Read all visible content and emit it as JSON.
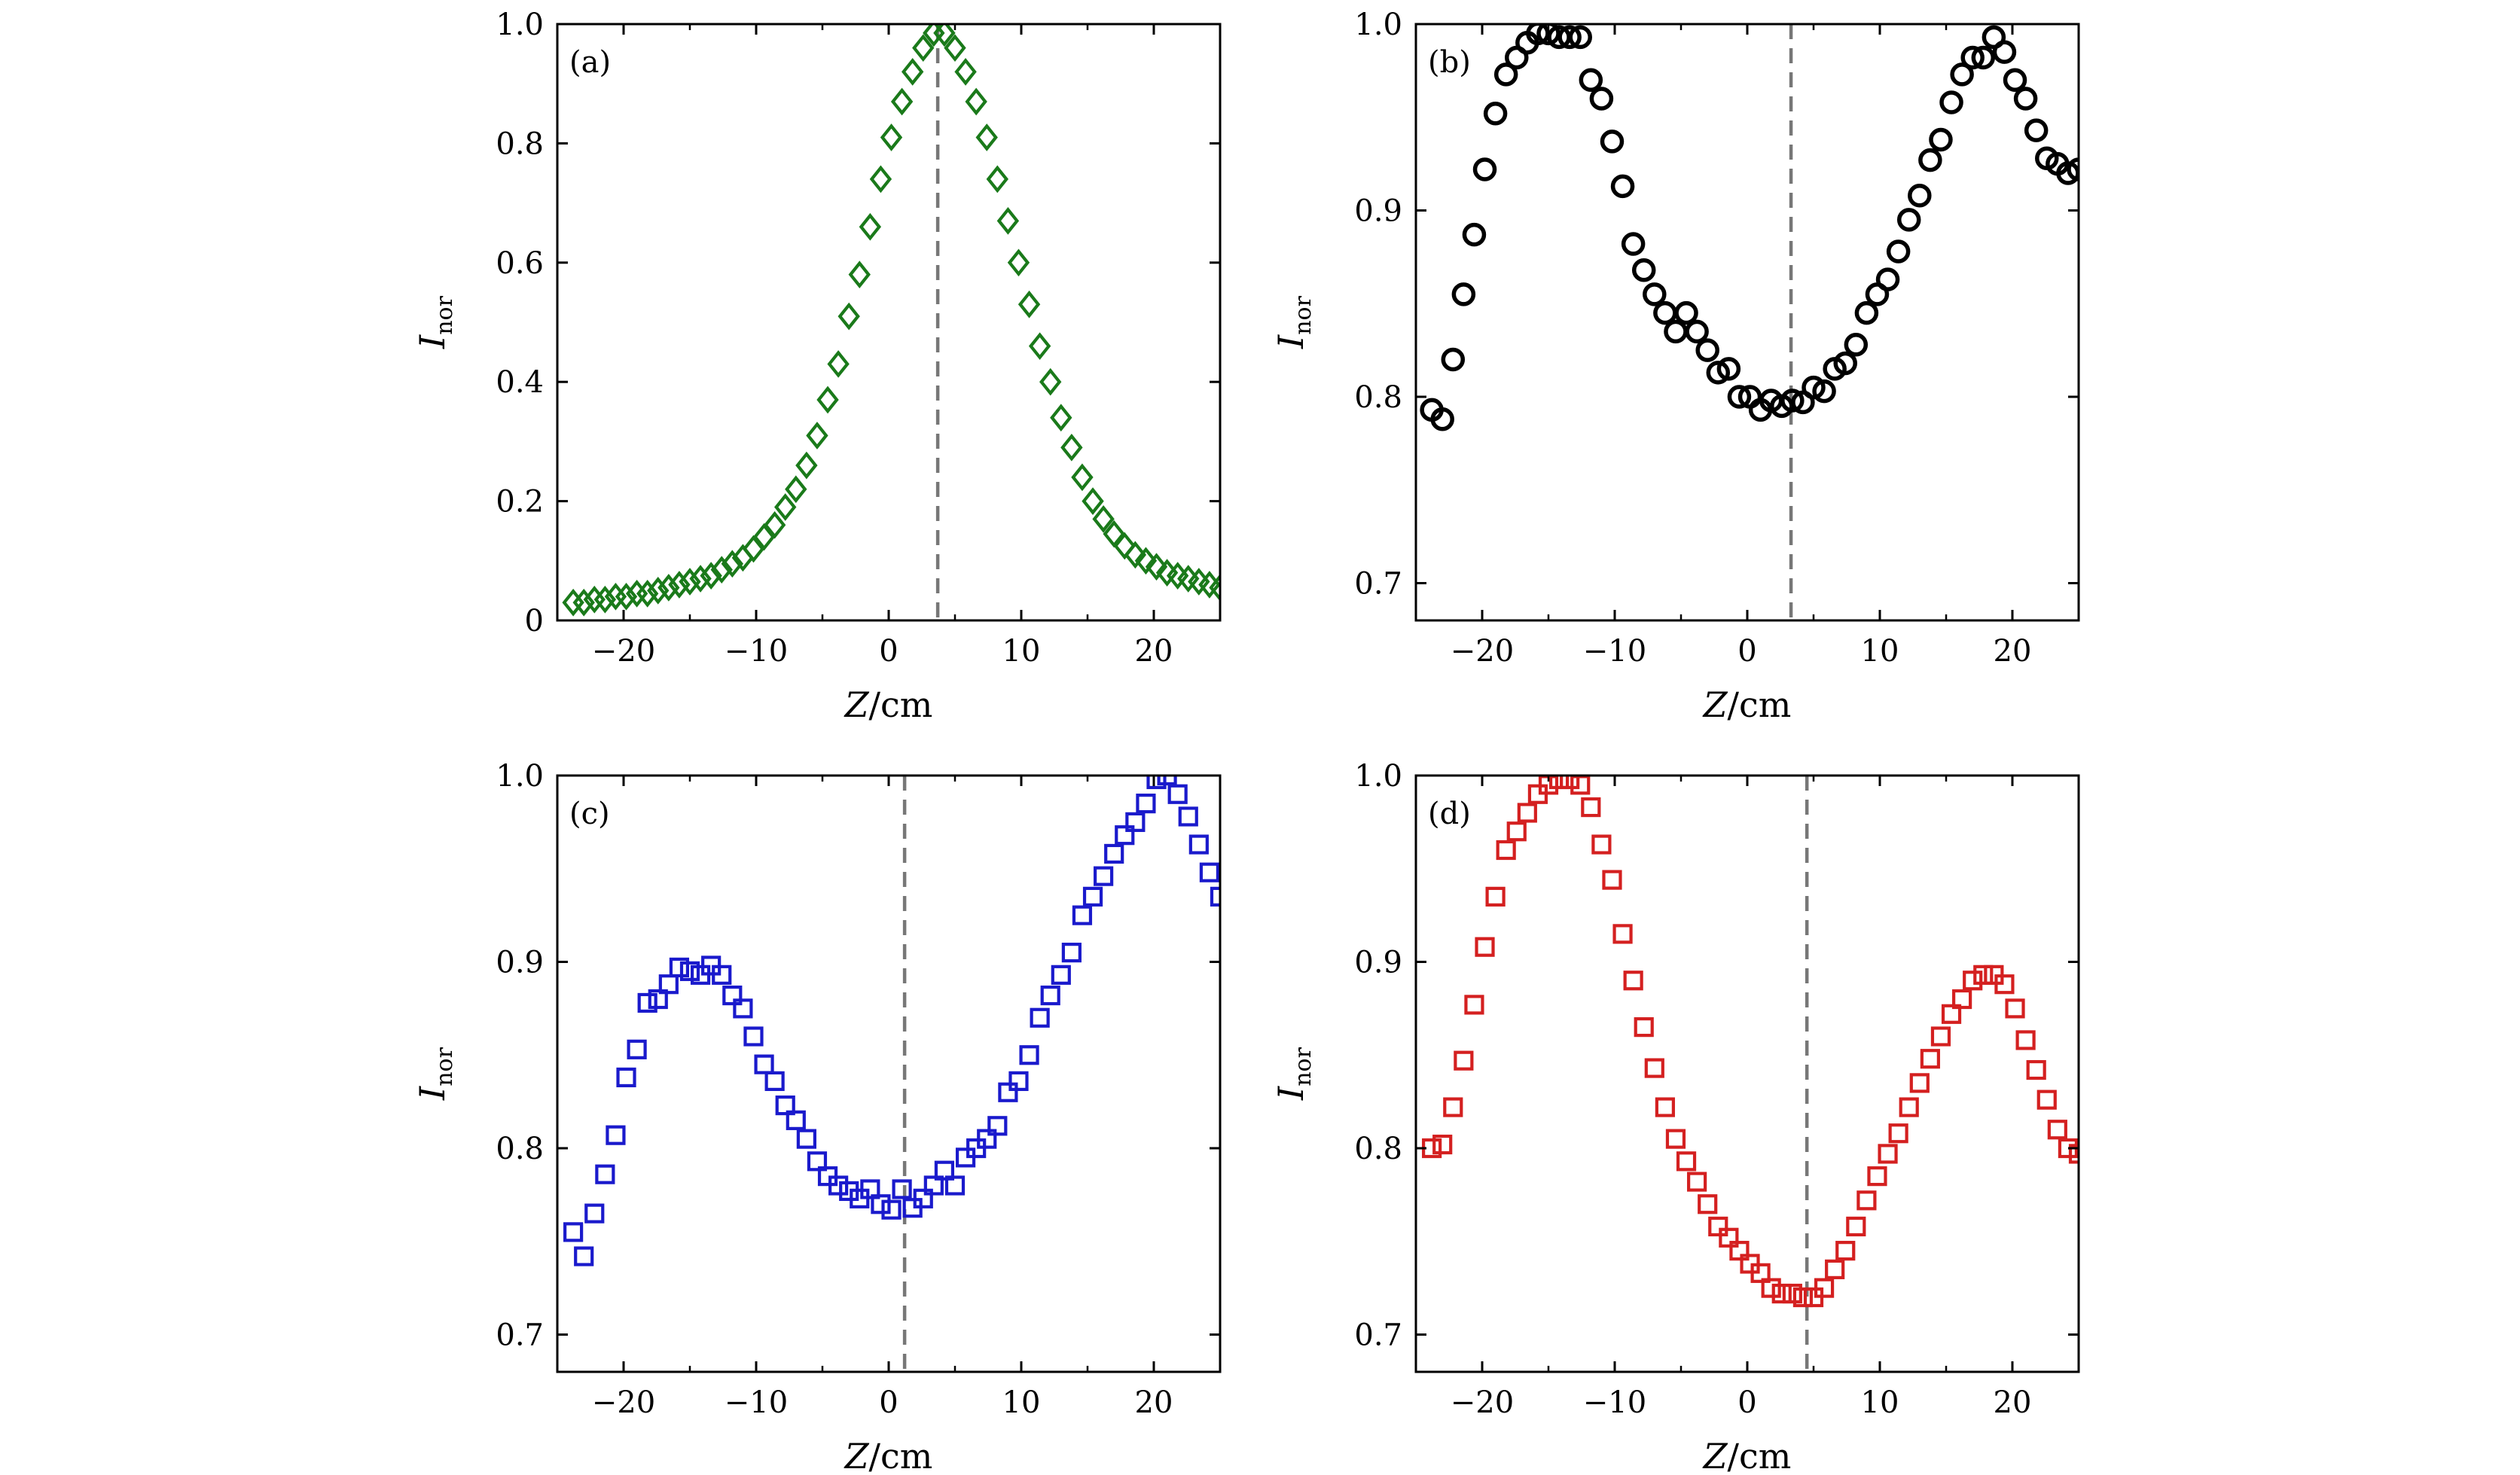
{
  "chart_data": [
    {
      "panel_label": "(a)",
      "type": "scatter",
      "marker": "diamond",
      "color": "#1a7a1a",
      "xlabel_main": "Z",
      "xlabel_unit": "/cm",
      "ylabel_main": "I",
      "ylabel_sub": "nor",
      "xlim": [
        -25,
        25
      ],
      "ylim": [
        0,
        1.0
      ],
      "xticks": [
        -20,
        -10,
        0,
        10,
        20
      ],
      "xtick_labels": [
        "−20",
        "−10",
        "0",
        "10",
        "20"
      ],
      "yticks": [
        0,
        0.2,
        0.4,
        0.6,
        0.8,
        1.0
      ],
      "ytick_labels": [
        "0",
        "0.2",
        "0.4",
        "0.6",
        "0.8",
        "1.0"
      ],
      "vline_x": 3.7,
      "x": [
        -23.8,
        -23.0,
        -22.2,
        -21.4,
        -20.6,
        -19.8,
        -19.0,
        -18.2,
        -17.4,
        -16.6,
        -15.8,
        -15.0,
        -14.2,
        -13.4,
        -12.6,
        -11.8,
        -11.0,
        -10.2,
        -9.4,
        -8.6,
        -7.8,
        -7.0,
        -6.2,
        -5.4,
        -4.6,
        -3.8,
        -3.0,
        -2.2,
        -1.4,
        -0.6,
        0.2,
        1.0,
        1.8,
        2.6,
        3.4,
        4.2,
        5.0,
        5.8,
        6.6,
        7.4,
        8.2,
        9.0,
        9.8,
        10.6,
        11.4,
        12.2,
        13.0,
        13.8,
        14.6,
        15.4,
        16.2,
        17.0,
        17.8,
        18.6,
        19.4,
        20.2,
        21.0,
        21.8,
        22.6,
        23.4,
        24.2,
        25.0
      ],
      "y": [
        0.03,
        0.03,
        0.035,
        0.035,
        0.04,
        0.04,
        0.045,
        0.045,
        0.05,
        0.055,
        0.06,
        0.065,
        0.07,
        0.075,
        0.085,
        0.095,
        0.105,
        0.12,
        0.14,
        0.16,
        0.19,
        0.22,
        0.26,
        0.31,
        0.37,
        0.43,
        0.51,
        0.58,
        0.66,
        0.74,
        0.81,
        0.87,
        0.92,
        0.96,
        0.985,
        0.985,
        0.96,
        0.92,
        0.87,
        0.81,
        0.74,
        0.67,
        0.6,
        0.53,
        0.46,
        0.4,
        0.34,
        0.29,
        0.24,
        0.2,
        0.17,
        0.145,
        0.125,
        0.11,
        0.1,
        0.09,
        0.08,
        0.075,
        0.07,
        0.065,
        0.06,
        0.055
      ]
    },
    {
      "panel_label": "(b)",
      "type": "scatter",
      "marker": "circle",
      "color": "#000000",
      "xlabel_main": "Z",
      "xlabel_unit": "/cm",
      "ylabel_main": "I",
      "ylabel_sub": "nor",
      "xlim": [
        -25,
        25
      ],
      "ylim": [
        0.68,
        1.0
      ],
      "xticks": [
        -20,
        -10,
        0,
        10,
        20
      ],
      "xtick_labels": [
        "−20",
        "−10",
        "0",
        "10",
        "20"
      ],
      "yticks": [
        0.7,
        0.8,
        0.9,
        1.0
      ],
      "ytick_labels": [
        "0.7",
        "0.8",
        "0.9",
        "1.0"
      ],
      "vline_x": 3.3,
      "x": [
        -23.8,
        -23.0,
        -22.2,
        -21.4,
        -20.6,
        -19.8,
        -19.0,
        -18.2,
        -17.4,
        -16.6,
        -15.8,
        -15.0,
        -14.2,
        -13.4,
        -12.6,
        -11.8,
        -11.0,
        -10.2,
        -9.4,
        -8.6,
        -7.8,
        -7.0,
        -6.2,
        -5.4,
        -4.6,
        -3.8,
        -3.0,
        -2.2,
        -1.4,
        -0.6,
        0.2,
        1.0,
        1.8,
        2.6,
        3.4,
        4.2,
        5.0,
        5.8,
        6.6,
        7.4,
        8.2,
        9.0,
        9.8,
        10.6,
        11.4,
        12.2,
        13.0,
        13.8,
        14.6,
        15.4,
        16.2,
        17.0,
        17.8,
        18.6,
        19.4,
        20.2,
        21.0,
        21.8,
        22.6,
        23.4,
        24.2,
        25.0
      ],
      "y": [
        0.793,
        0.788,
        0.82,
        0.855,
        0.887,
        0.922,
        0.952,
        0.973,
        0.982,
        0.99,
        0.995,
        0.995,
        0.993,
        0.993,
        0.993,
        0.97,
        0.96,
        0.937,
        0.913,
        0.882,
        0.868,
        0.855,
        0.845,
        0.835,
        0.845,
        0.835,
        0.825,
        0.813,
        0.815,
        0.8,
        0.8,
        0.793,
        0.798,
        0.795,
        0.798,
        0.797,
        0.805,
        0.803,
        0.815,
        0.818,
        0.828,
        0.845,
        0.855,
        0.863,
        0.878,
        0.895,
        0.908,
        0.927,
        0.938,
        0.958,
        0.973,
        0.982,
        0.982,
        0.993,
        0.985,
        0.97,
        0.96,
        0.943,
        0.928,
        0.925,
        0.92,
        0.922
      ]
    },
    {
      "panel_label": "(c)",
      "type": "scatter",
      "marker": "square",
      "color": "#1a1acc",
      "xlabel_main": "Z",
      "xlabel_unit": "/cm",
      "ylabel_main": "I",
      "ylabel_sub": "nor",
      "xlim": [
        -25,
        25
      ],
      "ylim": [
        0.68,
        1.0
      ],
      "xticks": [
        -20,
        -10,
        0,
        10,
        20
      ],
      "xtick_labels": [
        "−20",
        "−10",
        "0",
        "10",
        "20"
      ],
      "yticks": [
        0.7,
        0.8,
        0.9,
        1.0
      ],
      "ytick_labels": [
        "0.7",
        "0.8",
        "0.9",
        "1.0"
      ],
      "vline_x": 1.2,
      "x": [
        -23.8,
        -23.0,
        -22.2,
        -21.4,
        -20.6,
        -19.8,
        -19.0,
        -18.2,
        -17.4,
        -16.6,
        -15.8,
        -15.0,
        -14.2,
        -13.4,
        -12.6,
        -11.8,
        -11.0,
        -10.2,
        -9.4,
        -8.6,
        -7.8,
        -7.0,
        -6.2,
        -5.4,
        -4.6,
        -3.8,
        -3.0,
        -2.2,
        -1.4,
        -0.6,
        0.2,
        1.0,
        1.8,
        2.6,
        3.4,
        4.2,
        5.0,
        5.8,
        6.6,
        7.4,
        8.2,
        9.0,
        9.8,
        10.6,
        11.4,
        12.2,
        13.0,
        13.8,
        14.6,
        15.4,
        16.2,
        17.0,
        17.8,
        18.6,
        19.4,
        20.2,
        21.0,
        21.8,
        22.6,
        23.4,
        24.2,
        25.0
      ],
      "y": [
        0.755,
        0.742,
        0.765,
        0.786,
        0.807,
        0.838,
        0.853,
        0.878,
        0.88,
        0.888,
        0.897,
        0.895,
        0.893,
        0.898,
        0.893,
        0.882,
        0.875,
        0.86,
        0.845,
        0.836,
        0.823,
        0.815,
        0.805,
        0.793,
        0.785,
        0.78,
        0.777,
        0.773,
        0.778,
        0.77,
        0.767,
        0.778,
        0.768,
        0.773,
        0.78,
        0.788,
        0.78,
        0.795,
        0.8,
        0.805,
        0.812,
        0.83,
        0.836,
        0.85,
        0.87,
        0.882,
        0.893,
        0.905,
        0.925,
        0.935,
        0.946,
        0.958,
        0.968,
        0.975,
        0.985,
        0.998,
        1.0,
        0.99,
        0.978,
        0.963,
        0.948,
        0.935
      ]
    },
    {
      "panel_label": "(d)",
      "type": "scatter",
      "marker": "square",
      "color": "#d42020",
      "xlabel_main": "Z",
      "xlabel_unit": "/cm",
      "ylabel_main": "I",
      "ylabel_sub": "nor",
      "xlim": [
        -25,
        25
      ],
      "ylim": [
        0.68,
        1.0
      ],
      "xticks": [
        -20,
        -10,
        0,
        10,
        20
      ],
      "xtick_labels": [
        "−20",
        "−10",
        "0",
        "10",
        "20"
      ],
      "yticks": [
        0.7,
        0.8,
        0.9,
        1.0
      ],
      "ytick_labels": [
        "0.7",
        "0.8",
        "0.9",
        "1.0"
      ],
      "vline_x": 4.5,
      "x": [
        -23.8,
        -23.0,
        -22.2,
        -21.4,
        -20.6,
        -19.8,
        -19.0,
        -18.2,
        -17.4,
        -16.6,
        -15.8,
        -15.0,
        -14.2,
        -13.4,
        -12.6,
        -11.8,
        -11.0,
        -10.2,
        -9.4,
        -8.6,
        -7.8,
        -7.0,
        -6.2,
        -5.4,
        -4.6,
        -3.8,
        -3.0,
        -2.2,
        -1.4,
        -0.6,
        0.2,
        1.0,
        1.8,
        2.6,
        3.4,
        4.2,
        5.0,
        5.8,
        6.6,
        7.4,
        8.2,
        9.0,
        9.8,
        10.6,
        11.4,
        12.2,
        13.0,
        13.8,
        14.6,
        15.4,
        16.2,
        17.0,
        17.8,
        18.6,
        19.4,
        20.2,
        21.0,
        21.8,
        22.6,
        23.4,
        24.2,
        25.0
      ],
      "y": [
        0.8,
        0.802,
        0.822,
        0.847,
        0.877,
        0.908,
        0.935,
        0.96,
        0.97,
        0.98,
        0.99,
        0.995,
        0.998,
        0.998,
        0.995,
        0.983,
        0.963,
        0.944,
        0.915,
        0.89,
        0.865,
        0.843,
        0.822,
        0.805,
        0.793,
        0.782,
        0.77,
        0.758,
        0.752,
        0.745,
        0.738,
        0.733,
        0.725,
        0.722,
        0.722,
        0.72,
        0.72,
        0.725,
        0.735,
        0.745,
        0.758,
        0.772,
        0.785,
        0.797,
        0.808,
        0.822,
        0.835,
        0.848,
        0.86,
        0.872,
        0.88,
        0.89,
        0.893,
        0.893,
        0.888,
        0.875,
        0.858,
        0.842,
        0.826,
        0.81,
        0.8,
        0.797
      ]
    }
  ]
}
